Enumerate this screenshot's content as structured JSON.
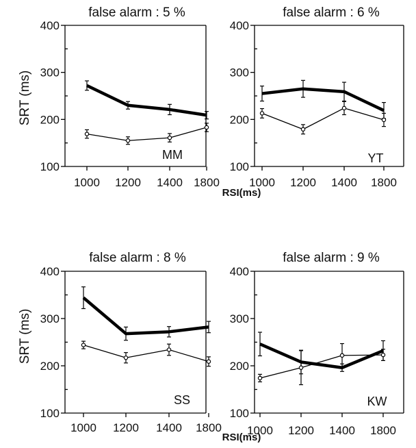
{
  "chart_data": [
    {
      "type": "line",
      "title": "false alarm : 5 %",
      "subject": "MM",
      "ylabel": "SRT (ms)",
      "x": [
        1000,
        1200,
        1400,
        1800
      ],
      "x_ticks": [
        "1000",
        "1200",
        "1400",
        "1800"
      ],
      "y_ticks": [
        "100",
        "200",
        "300",
        "400"
      ],
      "ylim": [
        100,
        400
      ],
      "series": [
        {
          "style": "thick",
          "values": [
            272,
            230,
            221,
            209
          ],
          "err": [
            10,
            8,
            11,
            8
          ]
        },
        {
          "style": "thin-open-circles",
          "values": [
            169,
            155,
            161,
            183
          ],
          "err": [
            9,
            8,
            9,
            9
          ]
        }
      ]
    },
    {
      "type": "line",
      "title": "false alarm : 6 %",
      "subject": "YT",
      "ylabel": "",
      "x": [
        1000,
        1200,
        1400,
        1800
      ],
      "x_ticks": [
        "1000",
        "1200",
        "1400",
        "1800"
      ],
      "y_ticks": [
        "100",
        "200",
        "300",
        "400"
      ],
      "ylim": [
        100,
        400
      ],
      "series": [
        {
          "style": "thick",
          "values": [
            255,
            265,
            259,
            219
          ],
          "err": [
            16,
            18,
            20,
            17
          ]
        },
        {
          "style": "thin-open-circles",
          "values": [
            213,
            179,
            224,
            199
          ],
          "err": [
            10,
            10,
            14,
            14
          ]
        }
      ]
    },
    {
      "type": "line",
      "title": "false alarm : 8 %",
      "subject": "SS",
      "ylabel": "SRT (ms)",
      "x": [
        1000,
        1200,
        1400,
        1800
      ],
      "x_ticks": [
        "1000",
        "1200",
        "1400",
        "1800"
      ],
      "y_ticks": [
        "100",
        "200",
        "300",
        "400"
      ],
      "ylim": [
        100,
        400
      ],
      "series": [
        {
          "style": "thick",
          "values": [
            344,
            268,
            272,
            282
          ],
          "err": [
            23,
            14,
            11,
            12
          ]
        },
        {
          "style": "thin-open-circles",
          "values": [
            244,
            217,
            234,
            209
          ],
          "err": [
            8,
            11,
            12,
            10
          ]
        }
      ]
    },
    {
      "type": "line",
      "title": "false alarm : 9 %",
      "subject": "KW",
      "ylabel": "",
      "x": [
        1000,
        1200,
        1400,
        1800
      ],
      "x_ticks": [
        "1000",
        "1200",
        "1400",
        "1800"
      ],
      "y_ticks": [
        "100",
        "200",
        "300",
        "400"
      ],
      "ylim": [
        100,
        400
      ],
      "series": [
        {
          "style": "thick",
          "values": [
            246,
            208,
            196,
            232
          ],
          "err": [
            25,
            25,
            8,
            21
          ]
        },
        {
          "style": "thin-open-circles",
          "values": [
            174,
            196,
            222,
            223
          ],
          "err": [
            8,
            36,
            25,
            12
          ]
        }
      ]
    }
  ],
  "xlabel_top": "RSI(ms)",
  "xlabel_bottom": "RSI(ms)"
}
